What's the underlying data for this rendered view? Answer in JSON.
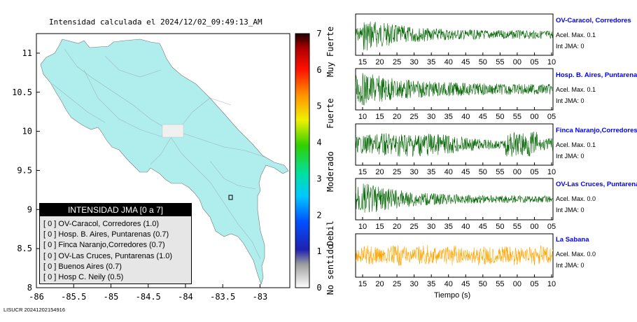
{
  "map": {
    "title": "Intensidad calculada el 2024/12/02_09:49:13_AM",
    "x_ticks": [
      "-86",
      "-85.5",
      "-85",
      "-84.5",
      "-84",
      "-83.5",
      "-83"
    ],
    "y_ticks": [
      "11",
      "10.5",
      "10",
      "9.5",
      "9",
      "8.5",
      "8"
    ],
    "land_color": "#b0eded",
    "footer": "LISUCR 20241202154916"
  },
  "colorbar": {
    "ticks": [
      "7",
      "6",
      "5",
      "4",
      "3",
      "2",
      "1",
      "0"
    ],
    "labels": [
      "Muy Fuerte",
      "Fuerte",
      "Moderado",
      "Debil",
      "No sentido"
    ]
  },
  "legend": {
    "title": "INTENSIDAD JMA [0 a 7]",
    "items": [
      "[ 0 ]  OV-Caracol, Corredores (1.0)",
      "[ 0 ]  Hosp. B. Aires, Puntarenas (0.7)",
      "[ 0 ]  Finca Naranjo,Corredores (0.7)",
      "[ 0 ]  OV-Las Cruces, Puntarenas (1.0)",
      "[ 0 ]  Buenos Aires (0.7)",
      "[ 0 ]  Hosp C. Neily (0.5)"
    ]
  },
  "stations": [
    {
      "name": "OV-Caracol, Corredores",
      "acel": "Acel. Max. 0.1",
      "int": "Int JMA: 0",
      "color": "#006400",
      "ticks": [
        "15",
        "20",
        "25",
        "30",
        "35",
        "40",
        "45",
        "50",
        "55",
        "00",
        "05",
        "10"
      ]
    },
    {
      "name": "Hosp. B. Aires, Puntarenas",
      "acel": "Acel. Max. 0.1",
      "int": "Int JMA: 0",
      "color": "#006400",
      "ticks": [
        "10",
        "15",
        "20",
        "25",
        "30",
        "35",
        "40",
        "45",
        "50",
        "55",
        "00",
        "05"
      ]
    },
    {
      "name": "Finca Naranjo,Corredores",
      "acel": "Acel. Max. 0.1",
      "int": "Int JMA: 0",
      "color": "#006400",
      "ticks": [
        "15",
        "20",
        "25",
        "30",
        "35",
        "40",
        "45",
        "50",
        "55",
        "00",
        "05",
        "10"
      ]
    },
    {
      "name": "OV-Las Cruces, Puntarenas",
      "acel": "Acel. Max. 0.0",
      "int": "Int JMA: 0",
      "color": "#006400",
      "ticks": [
        "10",
        "15",
        "20",
        "25",
        "30",
        "35",
        "40",
        "45",
        "50",
        "55",
        "00",
        "05"
      ]
    },
    {
      "name": "La Sabana",
      "acel": "Acel. Max. 0.0",
      "int": "Int JMA: 0",
      "color": "#ffa500",
      "ticks": [
        "15",
        "20",
        "25",
        "30",
        "35",
        "40",
        "45",
        "50",
        "55",
        "00",
        "05",
        "10"
      ]
    }
  ],
  "xlabel": "Tiempo (s)",
  "chart_data": [
    {
      "type": "heatmap",
      "title": "Intensidad calculada el 2024/12/02_09:49:13_AM",
      "xlim": [
        -86,
        -82.6
      ],
      "ylim": [
        8,
        11.25
      ],
      "colorbar_range": [
        0,
        7
      ]
    },
    {
      "type": "line",
      "series": [
        {
          "name": "OV-Caracol, Corredores",
          "peak_acel": 0.1,
          "int_jma": 0
        },
        {
          "name": "Hosp. B. Aires, Puntarenas",
          "peak_acel": 0.1,
          "int_jma": 0
        },
        {
          "name": "Finca Naranjo,Corredores",
          "peak_acel": 0.1,
          "int_jma": 0
        },
        {
          "name": "OV-Las Cruces, Puntarenas",
          "peak_acel": 0.0,
          "int_jma": 0
        },
        {
          "name": "La Sabana",
          "peak_acel": 0.0,
          "int_jma": 0
        }
      ],
      "xlabel": "Tiempo (s)"
    }
  ]
}
